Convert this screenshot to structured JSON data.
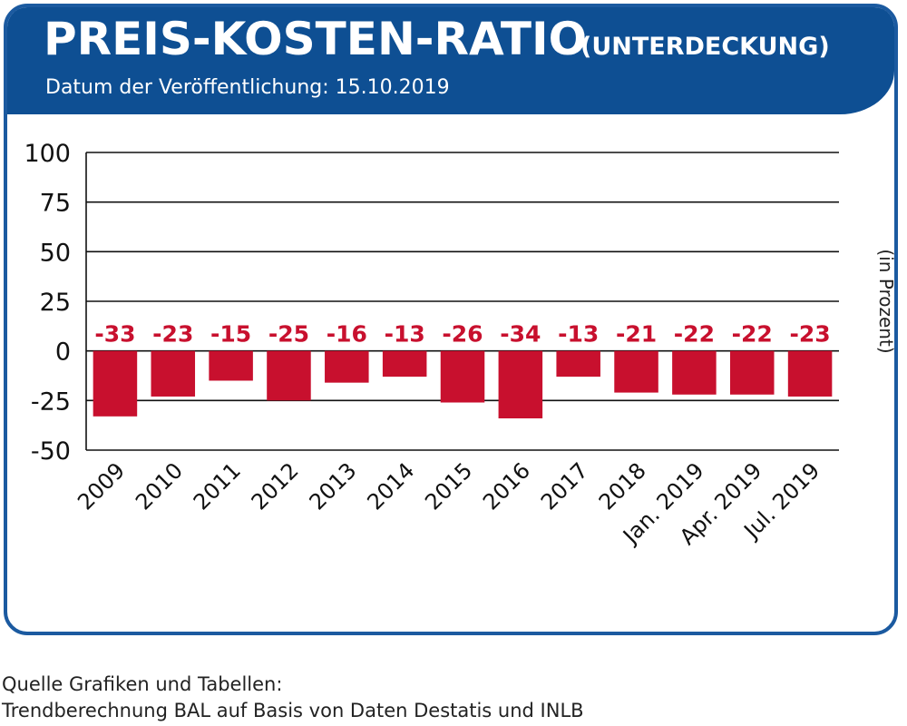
{
  "header": {
    "title": "PREIS-KOSTEN-RATIO",
    "subtitle": "(UNTERDECKUNG)",
    "date_line": "Datum der Veröffentlichung: 15.10.2019"
  },
  "source": {
    "line1": "Quelle Grafiken und Tabellen:",
    "line2": "Trendberechnung BAL auf Basis von Daten Destatis und INLB"
  },
  "colors": {
    "header_blue": "#0e4f93",
    "border_blue": "#1b5aa0",
    "bar_red": "#c8102e",
    "label_red": "#c8102e"
  },
  "chart_data": {
    "type": "bar",
    "categories": [
      "2009",
      "2010",
      "2011",
      "2012",
      "2013",
      "2014",
      "2015",
      "2016",
      "2017",
      "2018",
      "Jan. 2019",
      "Apr. 2019",
      "Jul. 2019"
    ],
    "values": [
      -33,
      -23,
      -15,
      -25,
      -16,
      -13,
      -26,
      -34,
      -13,
      -21,
      -22,
      -22,
      -23
    ],
    "data_labels": [
      "-33",
      "-23",
      "-15",
      "-25",
      "-16",
      "-13",
      "-26",
      "-34",
      "-13",
      "-21",
      "-22",
      "-22",
      "-23"
    ],
    "ylim": [
      -50,
      100
    ],
    "yticks": [
      100,
      75,
      50,
      25,
      0,
      -25,
      -50
    ],
    "ylabel": "(in Prozent)",
    "xlabel": "",
    "grid": true
  }
}
